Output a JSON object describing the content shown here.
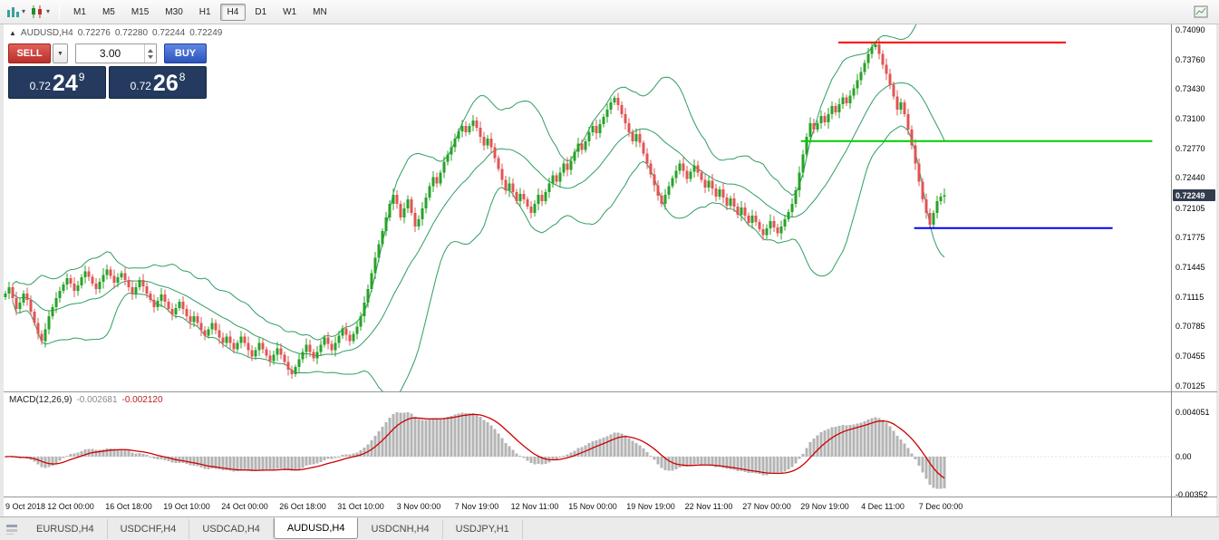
{
  "toolbar": {
    "timeframes": [
      "M1",
      "M5",
      "M15",
      "M30",
      "H1",
      "H4",
      "D1",
      "W1",
      "MN"
    ],
    "active_timeframe": "H4"
  },
  "chart_header": {
    "symbol": "AUDUSD,H4",
    "open": "0.72276",
    "high": "0.72280",
    "low": "0.72244",
    "close": "0.72249"
  },
  "trade_panel": {
    "sell_label": "SELL",
    "buy_label": "BUY",
    "volume": "3.00",
    "bid_prefix": "0.72",
    "bid_big": "24",
    "bid_sup": "9",
    "ask_prefix": "0.72",
    "ask_big": "26",
    "ask_sup": "8"
  },
  "price_axis": {
    "labels": [
      "0.74090",
      "0.73760",
      "0.73430",
      "0.73100",
      "0.72770",
      "0.72440",
      "0.72105",
      "0.71775",
      "0.71445",
      "0.71115",
      "0.70785",
      "0.70455",
      "0.70125"
    ],
    "current_price": "0.72249"
  },
  "macd_panel": {
    "label": "MACD(12,26,9)",
    "main_value": "-0.002681",
    "signal_value": "-0.002120",
    "axis_labels": [
      {
        "value": 0.004051,
        "text": "0.004051"
      },
      {
        "value": 0,
        "text": "0.00"
      },
      {
        "value": -0.00352,
        "text": "-0.00352"
      }
    ]
  },
  "time_axis": [
    {
      "bar": 2,
      "text": "9 Oct 2018"
    },
    {
      "bar": 18,
      "text": "12 Oct 00:00"
    },
    {
      "bar": 34,
      "text": "16 Oct 18:00"
    },
    {
      "bar": 50,
      "text": "19 Oct 10:00"
    },
    {
      "bar": 66,
      "text": "24 Oct 00:00"
    },
    {
      "bar": 82,
      "text": "26 Oct 18:00"
    },
    {
      "bar": 98,
      "text": "31 Oct 10:00"
    },
    {
      "bar": 114,
      "text": "3 Nov 00:00"
    },
    {
      "bar": 130,
      "text": "7 Nov 19:00"
    },
    {
      "bar": 146,
      "text": "12 Nov 11:00"
    },
    {
      "bar": 162,
      "text": "15 Nov 00:00"
    },
    {
      "bar": 178,
      "text": "19 Nov 19:00"
    },
    {
      "bar": 194,
      "text": "22 Nov 11:00"
    },
    {
      "bar": 210,
      "text": "27 Nov 00:00"
    },
    {
      "bar": 226,
      "text": "29 Nov 19:00"
    },
    {
      "bar": 242,
      "text": "4 Dec 11:00"
    },
    {
      "bar": 258,
      "text": "7 Dec 00:00"
    }
  ],
  "bottom_tabs": [
    "EURUSD,H4",
    "USDCHF,H4",
    "USDCAD,H4",
    "AUDUSD,H4",
    "USDCNH,H4",
    "USDJPY,H1"
  ],
  "active_tab": "AUDUSD,H4",
  "chart_data": {
    "type": "candlestick",
    "symbol": "AUDUSD",
    "timeframe": "H4",
    "price_range": {
      "min": 0.70125,
      "max": 0.7409
    },
    "candle_colors": {
      "bull": "#27a227",
      "bear": "#e15454"
    },
    "bollinger": {
      "period": 20,
      "deviation": 2,
      "color": "#2e9e62"
    },
    "macd": {
      "fast": 12,
      "slow": 26,
      "signal": 9,
      "histogram_color": "#b4b4b4",
      "signal_color": "#cc0000",
      "current_main": -0.002681,
      "current_signal": -0.00212
    },
    "hlines": [
      {
        "price": 0.7395,
        "color": "#ff0000",
        "x_start": 0.715,
        "x_end": 0.91
      },
      {
        "price": 0.7285,
        "color": "#00cc00",
        "x_start": 0.683,
        "x_end": 0.984
      },
      {
        "price": 0.7188,
        "color": "#0000ff",
        "x_start": 0.78,
        "x_end": 0.95
      }
    ],
    "closes": [
      0.7115,
      0.7122,
      0.711,
      0.7098,
      0.7105,
      0.7115,
      0.7108,
      0.7095,
      0.7082,
      0.707,
      0.7062,
      0.7075,
      0.709,
      0.71,
      0.711,
      0.7118,
      0.7125,
      0.7132,
      0.7126,
      0.7118,
      0.7124,
      0.7133,
      0.714,
      0.7134,
      0.7126,
      0.712,
      0.7128,
      0.7136,
      0.7142,
      0.7135,
      0.7127,
      0.7133,
      0.7138,
      0.713,
      0.7122,
      0.7115,
      0.7122,
      0.713,
      0.7123,
      0.7115,
      0.7108,
      0.71,
      0.7107,
      0.7114,
      0.7106,
      0.7098,
      0.7092,
      0.7099,
      0.7106,
      0.7098,
      0.709,
      0.7083,
      0.709,
      0.7082,
      0.7074,
      0.7068,
      0.7075,
      0.7082,
      0.7074,
      0.7066,
      0.706,
      0.7067,
      0.706,
      0.7053,
      0.706,
      0.7067,
      0.706,
      0.7052,
      0.7045,
      0.7052,
      0.706,
      0.7053,
      0.7046,
      0.704,
      0.7047,
      0.7054,
      0.7047,
      0.7039,
      0.703,
      0.7025,
      0.7033,
      0.7042,
      0.705,
      0.7058,
      0.705,
      0.7043,
      0.705,
      0.7058,
      0.7066,
      0.7059,
      0.7052,
      0.706,
      0.7068,
      0.7076,
      0.7069,
      0.7062,
      0.707,
      0.7078,
      0.709,
      0.7105,
      0.712,
      0.7138,
      0.7155,
      0.717,
      0.7185,
      0.72,
      0.7215,
      0.7225,
      0.7215,
      0.72,
      0.721,
      0.722,
      0.7205,
      0.719,
      0.7198,
      0.721,
      0.7222,
      0.7235,
      0.7245,
      0.7238,
      0.725,
      0.7262,
      0.727,
      0.7278,
      0.7288,
      0.7296,
      0.7302,
      0.7295,
      0.7302,
      0.7308,
      0.73,
      0.729,
      0.728,
      0.7288,
      0.7278,
      0.7266,
      0.7254,
      0.7242,
      0.723,
      0.7238,
      0.7228,
      0.7218,
      0.7226,
      0.722,
      0.7212,
      0.7205,
      0.7215,
      0.7225,
      0.7218,
      0.7228,
      0.7238,
      0.7247,
      0.724,
      0.725,
      0.726,
      0.7253,
      0.7263,
      0.7273,
      0.7282,
      0.7275,
      0.7285,
      0.7295,
      0.7302,
      0.7294,
      0.7304,
      0.7312,
      0.732,
      0.7328,
      0.7333,
      0.7325,
      0.7315,
      0.7305,
      0.7295,
      0.7285,
      0.7293,
      0.7283,
      0.7271,
      0.726,
      0.7248,
      0.7236,
      0.7224,
      0.7215,
      0.7225,
      0.7235,
      0.7244,
      0.7252,
      0.726,
      0.7252,
      0.7243,
      0.7251,
      0.7258,
      0.725,
      0.7242,
      0.7233,
      0.7241,
      0.7232,
      0.7223,
      0.7231,
      0.7222,
      0.7213,
      0.7221,
      0.7212,
      0.7203,
      0.7211,
      0.7202,
      0.7194,
      0.7202,
      0.7195,
      0.7187,
      0.718,
      0.7188,
      0.7196,
      0.7189,
      0.7182,
      0.719,
      0.7198,
      0.7206,
      0.7215,
      0.723,
      0.725,
      0.727,
      0.729,
      0.7305,
      0.7298,
      0.7305,
      0.7313,
      0.7306,
      0.7315,
      0.7324,
      0.7317,
      0.7326,
      0.7334,
      0.7327,
      0.7336,
      0.7344,
      0.7353,
      0.7362,
      0.7372,
      0.7382,
      0.739,
      0.7393,
      0.7382,
      0.737,
      0.736,
      0.7348,
      0.7335,
      0.732,
      0.7328,
      0.7315,
      0.7298,
      0.728,
      0.726,
      0.724,
      0.722,
      0.7205,
      0.7192,
      0.7205,
      0.7218,
      0.7223,
      0.72249
    ]
  }
}
